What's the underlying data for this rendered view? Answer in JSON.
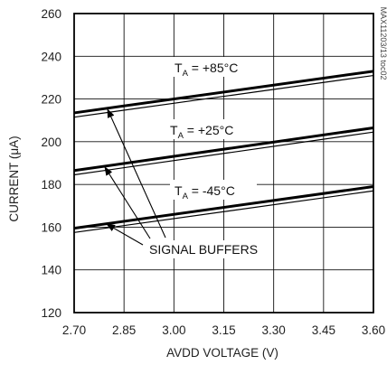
{
  "chart_data": {
    "type": "line",
    "title": "",
    "xlabel": "AVDD VOLTAGE (V)",
    "ylabel": "CURRENT (μA)",
    "xlim": [
      2.7,
      3.6
    ],
    "ylim": [
      120,
      260
    ],
    "xticks": [
      "2.70",
      "2.85",
      "3.00",
      "3.15",
      "3.30",
      "3.45",
      "3.60"
    ],
    "yticks": [
      "120",
      "140",
      "160",
      "180",
      "200",
      "220",
      "240",
      "260"
    ],
    "grid": true,
    "side_label": "MAX11203/13 toc02",
    "series": [
      {
        "temp_sub": "A",
        "temp_value": " = +85°C",
        "x": [
          2.7,
          3.6
        ],
        "y": [
          213.5,
          233.0
        ]
      },
      {
        "temp_sub": "A",
        "temp_value": " = +25°C",
        "x": [
          2.7,
          3.6
        ],
        "y": [
          186.5,
          206.5
        ]
      },
      {
        "temp_sub": "A",
        "temp_value": " = -45°C",
        "x": [
          2.7,
          3.6
        ],
        "y": [
          159.5,
          179.0
        ]
      }
    ],
    "buffer_series": [
      {
        "x": [
          2.7,
          3.6
        ],
        "y": [
          211.5,
          231.0
        ]
      },
      {
        "x": [
          2.7,
          3.6
        ],
        "y": [
          184.5,
          204.5
        ]
      },
      {
        "x": [
          2.7,
          3.6
        ],
        "y": [
          157.5,
          177.0
        ]
      }
    ],
    "annotation": "SIGNAL BUFFERS"
  }
}
